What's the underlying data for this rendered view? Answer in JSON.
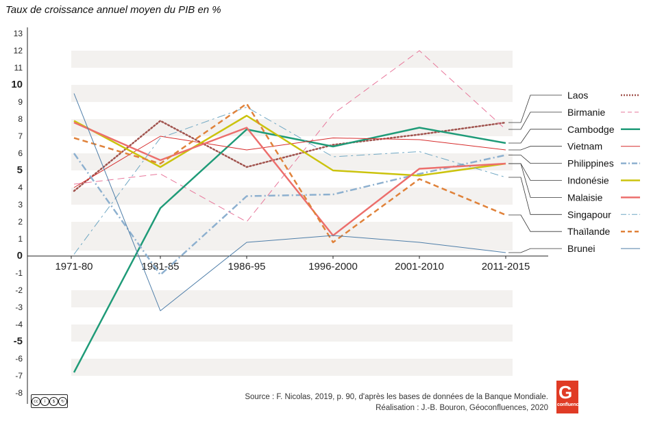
{
  "title": "Taux de croissance annuel moyen du PIB en %",
  "source_line1": "Source : F. Nicolas, 2019, p. 90, d'après les bases de données de la Banque Mondiale.",
  "source_line2": "Réalisation : J.-B. Bouron, Géoconfluences, 2020",
  "logo": {
    "big": "G",
    "small": "confluences",
    "color": "#e03b25"
  },
  "chart_data": {
    "type": "line",
    "title": "Taux de croissance annuel moyen du PIB en %",
    "categories": [
      "1971-80",
      "1981-85",
      "1986-95",
      "1996-2000",
      "2001-2010",
      "2011-2015"
    ],
    "ylim": [
      -8,
      13
    ],
    "yticks": [
      13,
      12,
      11,
      10,
      9,
      8,
      7,
      6,
      5,
      4,
      3,
      2,
      1,
      0,
      -1,
      -2,
      -3,
      -4,
      -5,
      -6,
      -7,
      -8
    ],
    "bold_ticks": [
      10,
      5,
      0,
      -5
    ],
    "grid": "alternating horizontal bands",
    "legend_position": "right",
    "series": [
      {
        "name": "Laos",
        "color": "#a0524d",
        "style": "dotted",
        "width": 2.5,
        "values": [
          3.8,
          7.9,
          5.2,
          6.5,
          7.1,
          7.8
        ]
      },
      {
        "name": "Birmanie",
        "color": "#e8769a",
        "style": "dashed",
        "width": 1,
        "values": [
          4.2,
          4.8,
          2.0,
          8.3,
          12.0,
          7.4
        ]
      },
      {
        "name": "Cambodge",
        "color": "#1f9b78",
        "style": "solid",
        "width": 2.5,
        "values": [
          -6.8,
          2.8,
          7.4,
          6.4,
          7.5,
          6.6
        ]
      },
      {
        "name": "Vietnam",
        "color": "#d62a2a",
        "style": "solid",
        "width": 1,
        "values": [
          4.0,
          7.0,
          6.2,
          6.9,
          6.8,
          6.2
        ]
      },
      {
        "name": "Philippines",
        "color": "#8db0cf",
        "style": "dashdot",
        "width": 2.5,
        "values": [
          6.0,
          -1.1,
          3.5,
          3.6,
          4.8,
          5.9
        ]
      },
      {
        "name": "Indonésie",
        "color": "#cbc30d",
        "style": "solid",
        "width": 2.5,
        "values": [
          7.9,
          5.2,
          8.2,
          5.0,
          4.7,
          5.4
        ]
      },
      {
        "name": "Malaisie",
        "color": "#ec6e6c",
        "style": "solid",
        "width": 2.5,
        "values": [
          7.8,
          5.6,
          7.5,
          1.2,
          5.1,
          5.4
        ]
      },
      {
        "name": "Singapour",
        "color": "#6fa7c3",
        "style": "dashdot",
        "width": 1,
        "values": [
          0.1,
          6.9,
          8.7,
          5.8,
          6.1,
          4.6
        ]
      },
      {
        "name": "Thaïlande",
        "color": "#e0823a",
        "style": "dashed",
        "width": 2.5,
        "values": [
          6.9,
          5.4,
          8.9,
          0.8,
          4.5,
          2.4
        ]
      },
      {
        "name": "Brunei",
        "color": "#4d7da8",
        "style": "solid",
        "width": 1,
        "values": [
          9.5,
          -3.2,
          0.8,
          1.2,
          0.8,
          0.2
        ]
      }
    ]
  }
}
